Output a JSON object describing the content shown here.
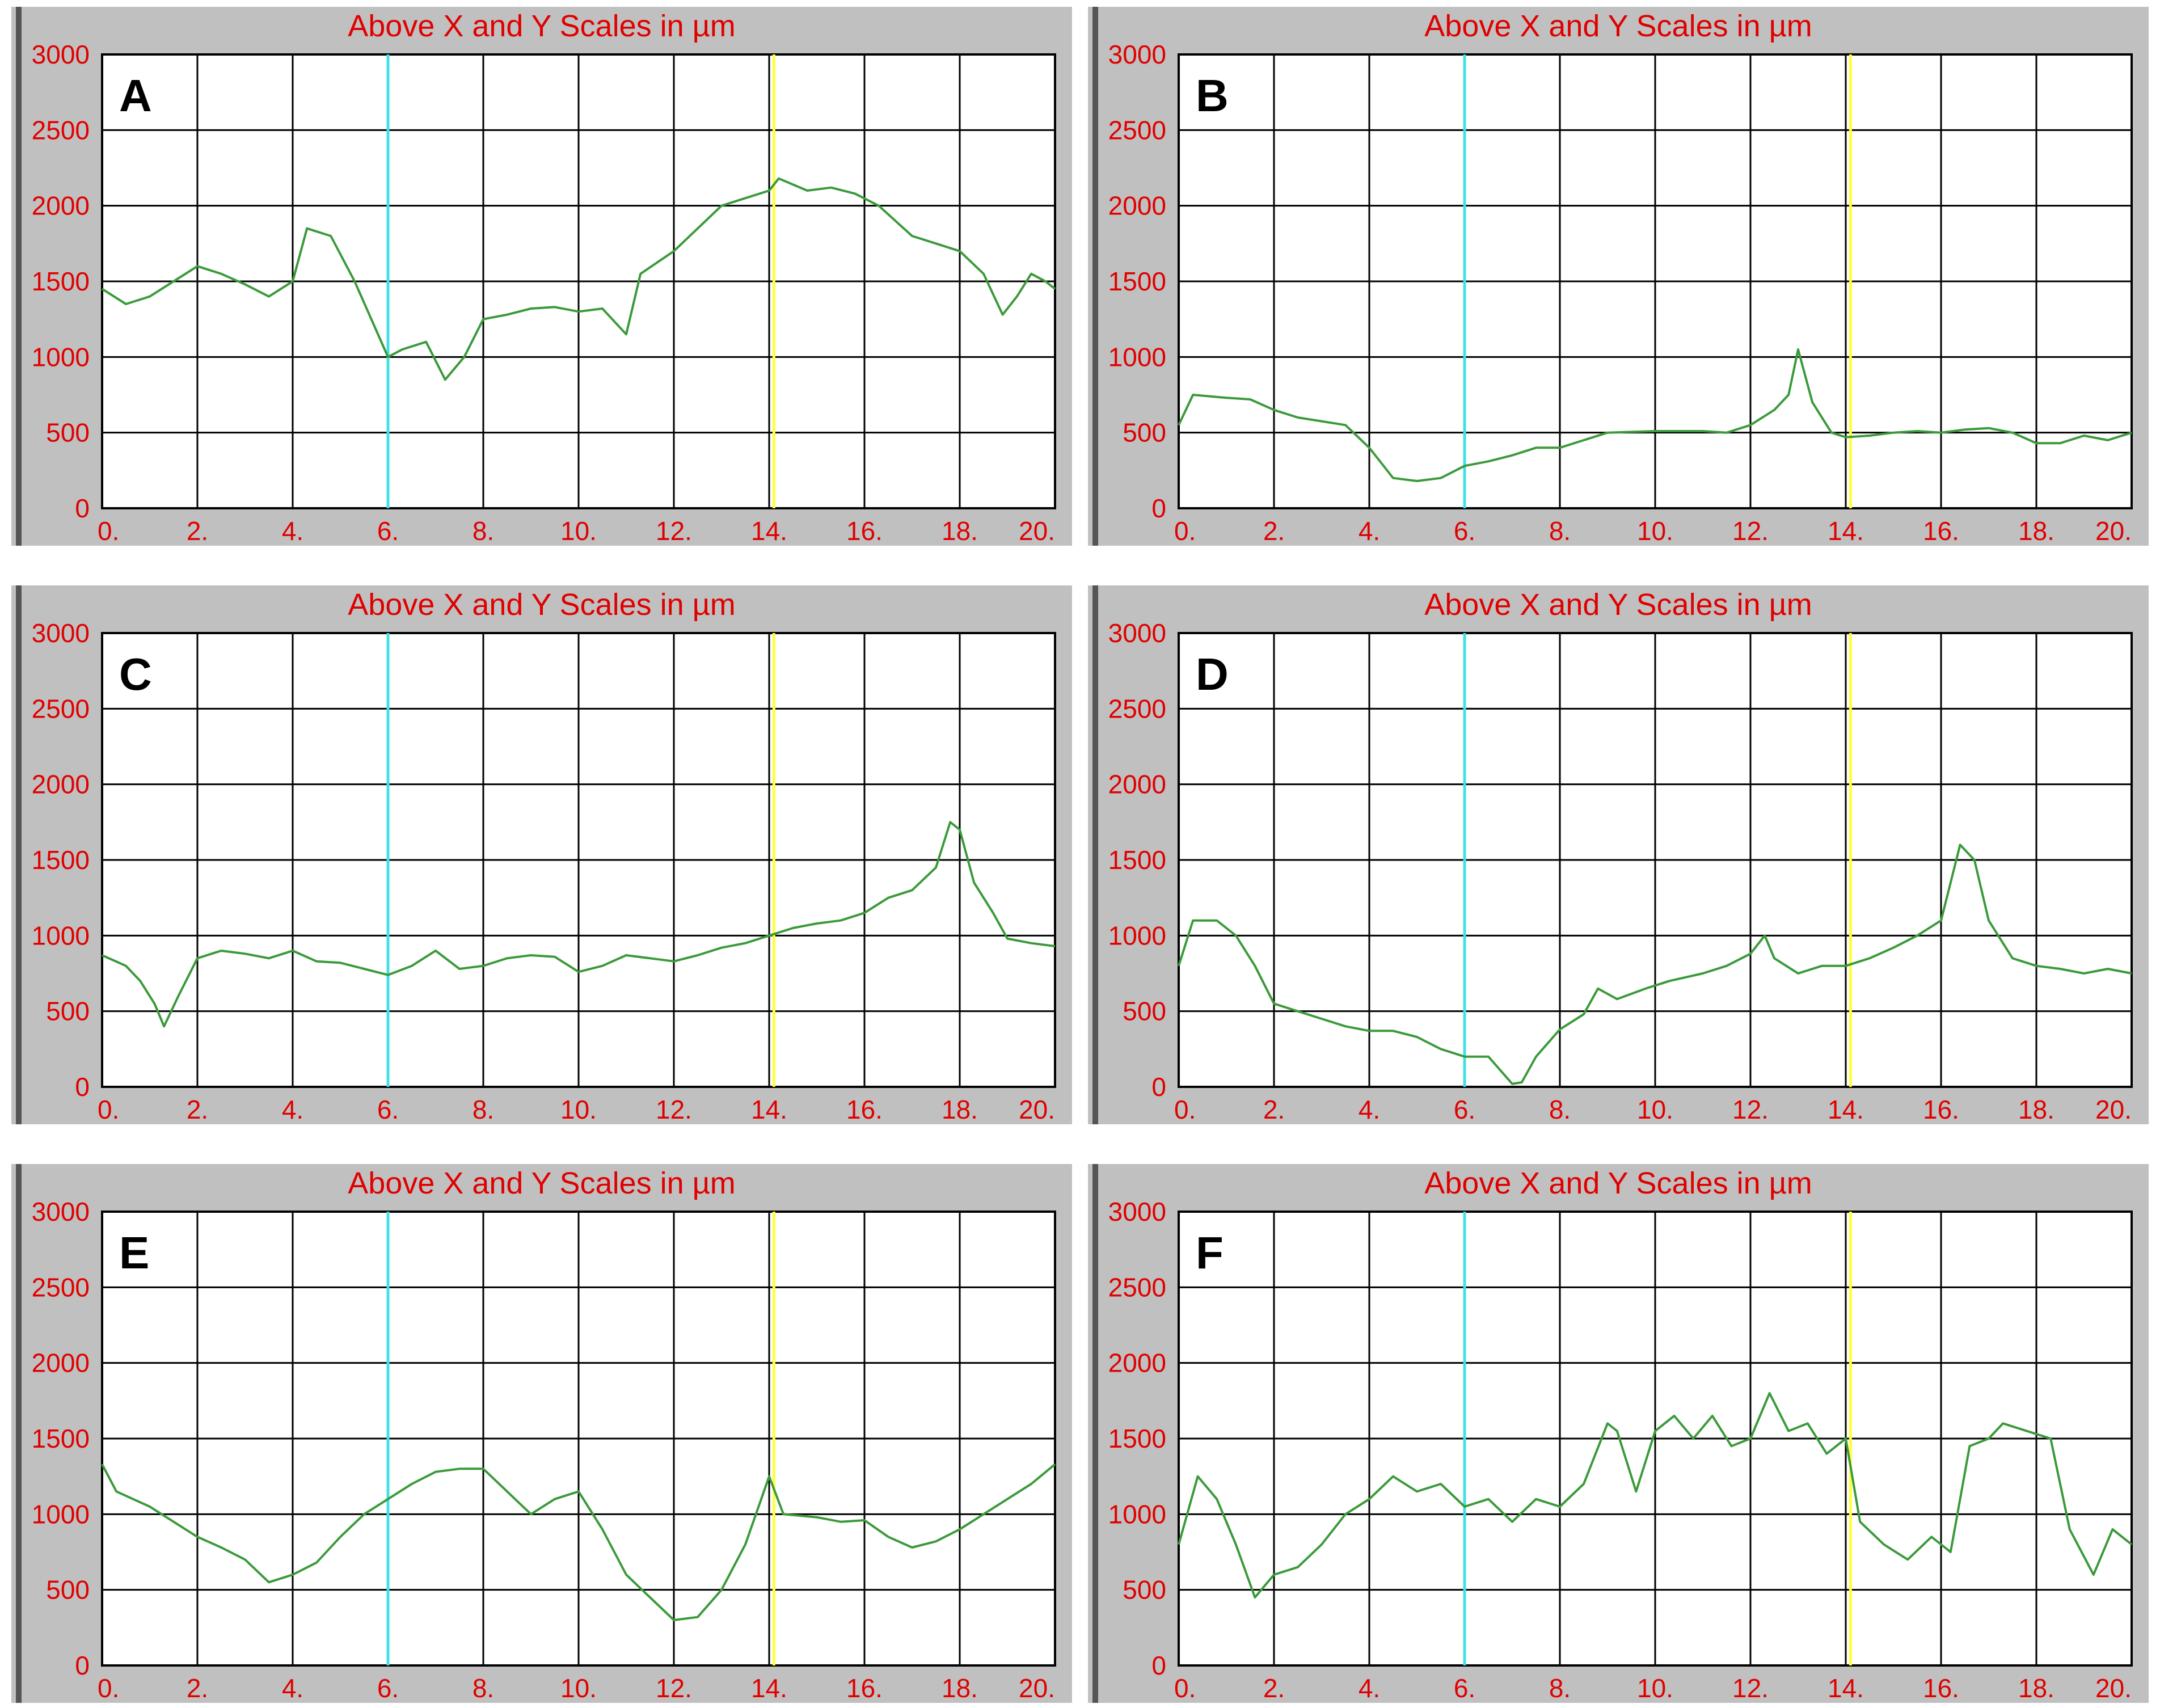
{
  "chart_data": [
    {
      "type": "line",
      "label": "A",
      "title": "Above X and Y Scales in µm",
      "xlim": [
        0,
        20
      ],
      "ylim": [
        0,
        3000
      ],
      "x_ticks": [
        "0.",
        "2.",
        "4.",
        "6.",
        "8.",
        "10.",
        "12.",
        "14.",
        "16.",
        "18.",
        "20."
      ],
      "y_ticks": [
        "0",
        "500",
        "1000",
        "1500",
        "2000",
        "2500",
        "3000"
      ],
      "markers": [
        {
          "x": 6,
          "color": "#40e0e8"
        },
        {
          "x": 14.1,
          "color": "#ffff40"
        }
      ],
      "line_color": "#3a9a3a",
      "x": [
        0,
        0.5,
        1,
        1.5,
        2,
        2.5,
        3,
        3.5,
        4,
        4.3,
        4.8,
        5.3,
        6,
        6.3,
        6.8,
        7.2,
        7.6,
        8,
        8.5,
        9,
        9.5,
        10,
        10.5,
        11,
        11.3,
        12,
        12.5,
        13,
        13.5,
        14,
        14.2,
        14.8,
        15.3,
        15.8,
        16.3,
        17,
        17.5,
        18,
        18.5,
        18.9,
        19.2,
        19.5,
        19.8,
        20
      ],
      "y": [
        1450,
        1350,
        1400,
        1500,
        1600,
        1550,
        1480,
        1400,
        1500,
        1850,
        1800,
        1500,
        1000,
        1050,
        1100,
        850,
        1000,
        1250,
        1280,
        1320,
        1330,
        1300,
        1320,
        1150,
        1550,
        1700,
        1850,
        2000,
        2050,
        2100,
        2180,
        2100,
        2120,
        2080,
        2000,
        1800,
        1750,
        1700,
        1550,
        1280,
        1400,
        1550,
        1500,
        1450
      ]
    },
    {
      "type": "line",
      "label": "B",
      "title": "Above X and Y Scales in µm",
      "xlim": [
        0,
        20
      ],
      "ylim": [
        0,
        3000
      ],
      "x_ticks": [
        "0.",
        "2.",
        "4.",
        "6.",
        "8.",
        "10.",
        "12.",
        "14.",
        "16.",
        "18.",
        "20."
      ],
      "y_ticks": [
        "0",
        "500",
        "1000",
        "1500",
        "2000",
        "2500",
        "3000"
      ],
      "markers": [
        {
          "x": 6,
          "color": "#40e0e8"
        },
        {
          "x": 14.1,
          "color": "#ffff40"
        }
      ],
      "line_color": "#3a9a3a",
      "x": [
        0,
        0.3,
        1,
        1.5,
        2,
        2.5,
        3.5,
        4,
        4.5,
        5,
        5.5,
        6,
        6.5,
        7,
        7.5,
        8,
        8.5,
        9,
        10,
        11,
        11.5,
        12,
        12.5,
        12.8,
        13,
        13.3,
        13.7,
        14,
        14.5,
        15,
        15.5,
        16,
        16.5,
        17,
        17.5,
        18,
        18.5,
        19,
        19.5,
        20
      ],
      "y": [
        550,
        750,
        730,
        720,
        650,
        600,
        550,
        400,
        200,
        180,
        200,
        280,
        310,
        350,
        400,
        400,
        450,
        500,
        510,
        510,
        500,
        550,
        650,
        750,
        1050,
        700,
        500,
        470,
        480,
        500,
        510,
        500,
        520,
        530,
        500,
        430,
        430,
        480,
        450,
        500
      ]
    },
    {
      "type": "line",
      "label": "C",
      "title": "Above X and Y Scales in µm",
      "xlim": [
        0,
        20
      ],
      "ylim": [
        0,
        3000
      ],
      "x_ticks": [
        "0.",
        "2.",
        "4.",
        "6.",
        "8.",
        "10.",
        "12.",
        "14.",
        "16.",
        "18.",
        "20."
      ],
      "y_ticks": [
        "0",
        "500",
        "1000",
        "1500",
        "2000",
        "2500",
        "3000"
      ],
      "markers": [
        {
          "x": 6,
          "color": "#40e0e8"
        },
        {
          "x": 14.1,
          "color": "#ffff40"
        }
      ],
      "line_color": "#3a9a3a",
      "x": [
        0,
        0.5,
        0.8,
        1.1,
        1.3,
        1.6,
        2,
        2.5,
        3,
        3.5,
        4,
        4.5,
        5,
        5.5,
        6,
        6.5,
        7,
        7.5,
        8,
        8.5,
        9,
        9.5,
        10,
        10.5,
        11,
        11.5,
        12,
        12.5,
        13,
        13.5,
        14,
        14.5,
        15,
        15.5,
        16,
        16.5,
        17,
        17.5,
        17.8,
        18,
        18.3,
        18.7,
        19,
        19.5,
        20
      ],
      "y": [
        870,
        800,
        700,
        550,
        400,
        600,
        850,
        900,
        880,
        850,
        900,
        830,
        820,
        780,
        740,
        800,
        900,
        780,
        800,
        850,
        870,
        860,
        760,
        800,
        870,
        850,
        830,
        870,
        920,
        950,
        1000,
        1050,
        1080,
        1100,
        1150,
        1250,
        1300,
        1450,
        1750,
        1700,
        1350,
        1150,
        980,
        950,
        930
      ]
    },
    {
      "type": "line",
      "label": "D",
      "title": "Above X and Y Scales in µm",
      "xlim": [
        0,
        20
      ],
      "ylim": [
        0,
        3000
      ],
      "x_ticks": [
        "0.",
        "2.",
        "4.",
        "6.",
        "8.",
        "10.",
        "12.",
        "14.",
        "16.",
        "18.",
        "20."
      ],
      "y_ticks": [
        "0",
        "500",
        "1000",
        "1500",
        "2000",
        "2500",
        "3000"
      ],
      "markers": [
        {
          "x": 6,
          "color": "#40e0e8"
        },
        {
          "x": 14.1,
          "color": "#ffff40"
        }
      ],
      "line_color": "#3a9a3a",
      "x": [
        0,
        0.3,
        0.8,
        1.2,
        1.6,
        2,
        2.5,
        3,
        3.5,
        4,
        4.5,
        5,
        5.5,
        6,
        6.5,
        7,
        7.2,
        7.5,
        8,
        8.5,
        8.8,
        9.2,
        9.8,
        10.3,
        11,
        11.5,
        12,
        12.3,
        12.5,
        13,
        13.5,
        14,
        14.5,
        15,
        15.5,
        16,
        16.4,
        16.7,
        17,
        17.5,
        18,
        18.5,
        19,
        19.5,
        20
      ],
      "y": [
        800,
        1100,
        1100,
        1000,
        800,
        550,
        500,
        450,
        400,
        370,
        370,
        330,
        250,
        200,
        200,
        20,
        30,
        200,
        380,
        480,
        650,
        580,
        650,
        700,
        750,
        800,
        880,
        1000,
        850,
        750,
        800,
        800,
        850,
        920,
        1000,
        1100,
        1600,
        1500,
        1100,
        850,
        800,
        780,
        750,
        780,
        750
      ]
    },
    {
      "type": "line",
      "label": "E",
      "title": "Above X and Y Scales in µm",
      "xlim": [
        0,
        20
      ],
      "ylim": [
        0,
        3000
      ],
      "x_ticks": [
        "0.",
        "2.",
        "4.",
        "6.",
        "8.",
        "10.",
        "12.",
        "14.",
        "16.",
        "18.",
        "20."
      ],
      "y_ticks": [
        "0",
        "500",
        "1000",
        "1500",
        "2000",
        "2500",
        "3000"
      ],
      "markers": [
        {
          "x": 6,
          "color": "#40e0e8"
        },
        {
          "x": 14.1,
          "color": "#ffff40"
        }
      ],
      "line_color": "#3a9a3a",
      "x": [
        0,
        0.3,
        1,
        1.5,
        2,
        2.5,
        3,
        3.5,
        4,
        4.5,
        5,
        5.5,
        6,
        6.5,
        7,
        7.5,
        8,
        8.5,
        9,
        9.5,
        10,
        10.5,
        11,
        11.5,
        12,
        12.5,
        13,
        13.5,
        14,
        14.3,
        15,
        15.5,
        16,
        16.5,
        17,
        17.5,
        18,
        18.5,
        19,
        19.5,
        20
      ],
      "y": [
        1330,
        1150,
        1050,
        950,
        850,
        780,
        700,
        550,
        600,
        680,
        850,
        1000,
        1100,
        1200,
        1280,
        1300,
        1300,
        1150,
        1000,
        1100,
        1150,
        900,
        600,
        450,
        300,
        320,
        500,
        800,
        1250,
        1000,
        980,
        950,
        960,
        850,
        780,
        820,
        900,
        1000,
        1100,
        1200,
        1330
      ]
    },
    {
      "type": "line",
      "label": "F",
      "title": "Above X and Y Scales in µm",
      "xlim": [
        0,
        20
      ],
      "ylim": [
        0,
        3000
      ],
      "x_ticks": [
        "0.",
        "2.",
        "4.",
        "6.",
        "8.",
        "10.",
        "12.",
        "14.",
        "16.",
        "18.",
        "20."
      ],
      "y_ticks": [
        "0",
        "500",
        "1000",
        "1500",
        "2000",
        "2500",
        "3000"
      ],
      "markers": [
        {
          "x": 6,
          "color": "#40e0e8"
        },
        {
          "x": 14.1,
          "color": "#ffff40"
        }
      ],
      "line_color": "#3a9a3a",
      "x": [
        0,
        0.4,
        0.8,
        1.2,
        1.6,
        2,
        2.5,
        3,
        3.5,
        4,
        4.5,
        5,
        5.5,
        6,
        6.5,
        7,
        7.5,
        8,
        8.5,
        9,
        9.2,
        9.6,
        10,
        10.4,
        10.8,
        11.2,
        11.6,
        12,
        12.4,
        12.8,
        13.2,
        13.6,
        14,
        14.3,
        14.8,
        15.3,
        15.8,
        16.2,
        16.6,
        17,
        17.3,
        17.8,
        18.3,
        18.7,
        19.2,
        19.6,
        20
      ],
      "y": [
        800,
        1250,
        1100,
        800,
        450,
        600,
        650,
        800,
        1000,
        1100,
        1250,
        1150,
        1200,
        1050,
        1100,
        950,
        1100,
        1050,
        1200,
        1600,
        1550,
        1150,
        1550,
        1650,
        1500,
        1650,
        1450,
        1500,
        1800,
        1550,
        1600,
        1400,
        1500,
        950,
        800,
        700,
        850,
        750,
        1450,
        1500,
        1600,
        1550,
        1500,
        900,
        600,
        900,
        800
      ]
    }
  ]
}
